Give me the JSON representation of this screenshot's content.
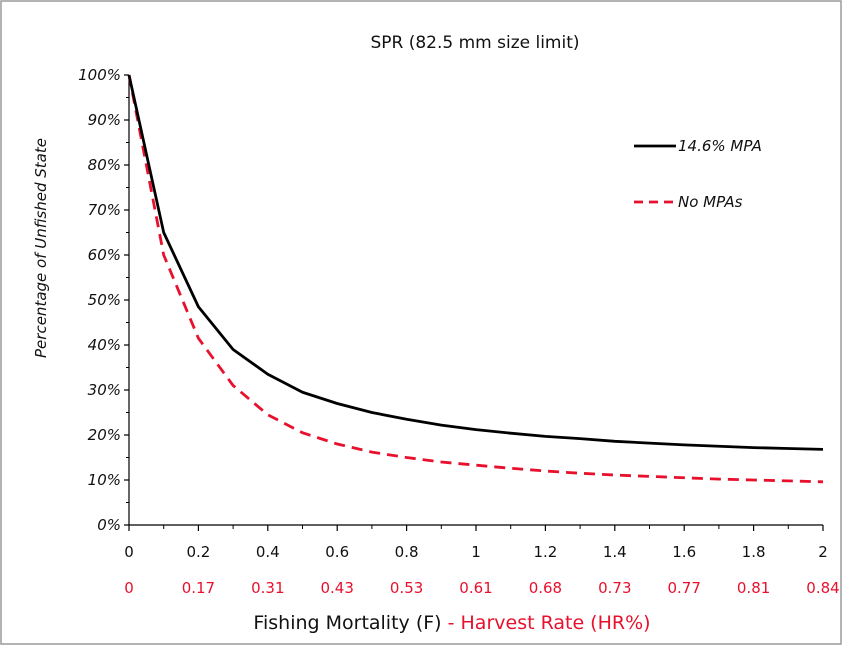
{
  "chart_data": {
    "type": "line",
    "title": "SPR (82.5 mm size limit)",
    "ylabel": "Percentage of Unfished State",
    "xlabel_part1": "Fishing Mortality (F)",
    "xlabel_part2": " - Harvest Rate (HR%)",
    "xlim": [
      0,
      2
    ],
    "ylim": [
      0,
      100
    ],
    "x_ticks": [
      "0",
      "0.2",
      "0.4",
      "0.6",
      "0.8",
      "1",
      "1.2",
      "1.4",
      "1.6",
      "1.8",
      "2"
    ],
    "harvest_rate_ticks": [
      "0",
      "0.17",
      "0.31",
      "0.43",
      "0.53",
      "0.61",
      "0.68",
      "0.73",
      "0.77",
      "0.81",
      "0.84"
    ],
    "y_ticks": [
      "0%",
      "10%",
      "20%",
      "30%",
      "40%",
      "50%",
      "60%",
      "70%",
      "80%",
      "90%",
      "100%"
    ],
    "grid": false,
    "legend_position": "top-right",
    "colors": {
      "mpa": "#000000",
      "no_mpa": "#e8112d",
      "harvest_rate": "#e8112d",
      "frame": "#9a9a9a"
    },
    "series": [
      {
        "name": "14.6% MPA",
        "style": "solid",
        "x": [
          0,
          0.1,
          0.2,
          0.3,
          0.4,
          0.5,
          0.6,
          0.7,
          0.8,
          0.9,
          1.0,
          1.1,
          1.2,
          1.3,
          1.4,
          1.5,
          1.6,
          1.7,
          1.8,
          1.9,
          2.0
        ],
        "y": [
          100,
          65,
          48.5,
          39,
          33.5,
          29.5,
          27,
          25,
          23.5,
          22.2,
          21.2,
          20.4,
          19.7,
          19.2,
          18.6,
          18.2,
          17.8,
          17.5,
          17.2,
          17.0,
          16.8
        ]
      },
      {
        "name": "No MPAs",
        "style": "dashed",
        "x": [
          0,
          0.1,
          0.2,
          0.3,
          0.4,
          0.5,
          0.6,
          0.7,
          0.8,
          0.9,
          1.0,
          1.1,
          1.2,
          1.3,
          1.4,
          1.5,
          1.6,
          1.7,
          1.8,
          1.9,
          2.0
        ],
        "y": [
          100,
          60,
          41.5,
          31,
          24.5,
          20.5,
          18,
          16.2,
          15,
          14,
          13.3,
          12.6,
          12.0,
          11.5,
          11.1,
          10.8,
          10.5,
          10.2,
          10.0,
          9.8,
          9.6
        ]
      }
    ]
  }
}
